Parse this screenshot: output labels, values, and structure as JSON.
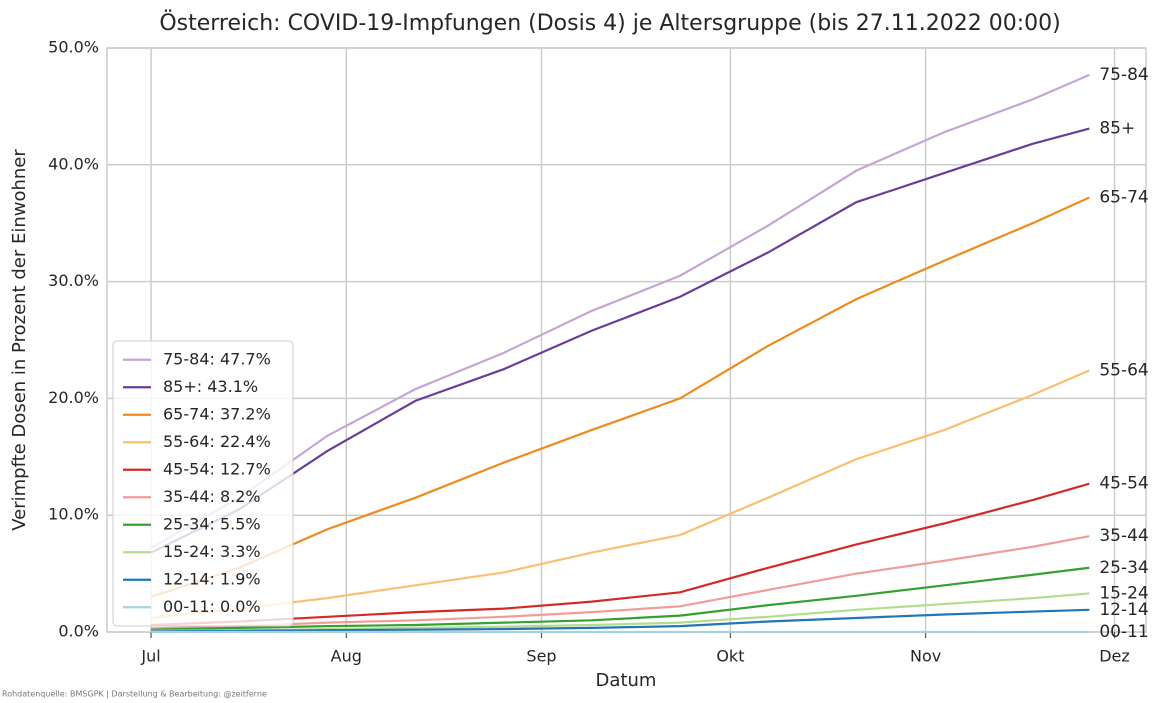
{
  "chart_data": {
    "type": "line",
    "title": "Österreich: COVID-19-Impfungen (Dosis 4) je Altersgruppe (bis 27.11.2022 00:00)",
    "xlabel": "Datum",
    "ylabel": "Verimpfte Dosen in Prozent der Einwohner",
    "source": "Rohdatenquelle: BMSGPK | Darstellung & Bearbeitung: @zeitferne",
    "x": [
      0,
      14,
      28,
      42,
      56,
      70,
      84,
      98,
      112,
      126,
      140,
      149
    ],
    "xlim": [
      -7,
      158
    ],
    "xticks": [
      {
        "value": 0,
        "label": "Jul"
      },
      {
        "value": 31,
        "label": "Aug"
      },
      {
        "value": 62,
        "label": "Sep"
      },
      {
        "value": 92,
        "label": "Okt"
      },
      {
        "value": 123,
        "label": "Nov"
      },
      {
        "value": 153,
        "label": "Dez"
      }
    ],
    "ylim": [
      0,
      50
    ],
    "yticks": [
      {
        "value": 0,
        "label": "0.0%"
      },
      {
        "value": 10,
        "label": "10.0%"
      },
      {
        "value": 20,
        "label": "20.0%"
      },
      {
        "value": 30,
        "label": "30.0%"
      },
      {
        "value": 40,
        "label": "40.0%"
      },
      {
        "value": 50,
        "label": "50.0%"
      }
    ],
    "grid": true,
    "legend_position": "lower left",
    "series": [
      {
        "name": "75-84",
        "legend": "75-84: 47.7%",
        "color": "#c5a5d4",
        "values": [
          7.2,
          11.5,
          16.8,
          20.8,
          23.9,
          27.5,
          30.5,
          34.8,
          39.5,
          42.8,
          45.6,
          47.7
        ]
      },
      {
        "name": "85+",
        "legend": "85+: 43.1%",
        "color": "#6a3d9a",
        "values": [
          6.8,
          10.5,
          15.5,
          19.8,
          22.5,
          25.8,
          28.7,
          32.5,
          36.8,
          39.3,
          41.8,
          43.1
        ]
      },
      {
        "name": "65-74",
        "legend": "65-74: 37.2%",
        "color": "#ef8a1c",
        "values": [
          3.0,
          5.5,
          8.8,
          11.5,
          14.5,
          17.3,
          20.0,
          24.5,
          28.5,
          31.8,
          35.0,
          37.2
        ]
      },
      {
        "name": "55-64",
        "legend": "55-64: 22.4%",
        "color": "#f9bf72",
        "values": [
          1.2,
          2.0,
          2.9,
          4.0,
          5.1,
          6.8,
          8.3,
          11.5,
          14.8,
          17.3,
          20.3,
          22.4
        ]
      },
      {
        "name": "45-54",
        "legend": "45-54: 12.7%",
        "color": "#d42a26",
        "values": [
          0.6,
          0.9,
          1.3,
          1.7,
          2.0,
          2.6,
          3.4,
          5.5,
          7.5,
          9.3,
          11.3,
          12.7
        ]
      },
      {
        "name": "35-44",
        "legend": "35-44: 8.2%",
        "color": "#f29c9a",
        "values": [
          0.3,
          0.5,
          0.8,
          1.0,
          1.3,
          1.7,
          2.2,
          3.6,
          5.0,
          6.1,
          7.3,
          8.2
        ]
      },
      {
        "name": "25-34",
        "legend": "25-34: 5.5%",
        "color": "#36a031",
        "values": [
          0.2,
          0.35,
          0.5,
          0.6,
          0.8,
          1.0,
          1.4,
          2.3,
          3.1,
          4.0,
          4.9,
          5.5
        ]
      },
      {
        "name": "15-24",
        "legend": "15-24: 3.3%",
        "color": "#b2dd8d",
        "values": [
          0.1,
          0.15,
          0.25,
          0.35,
          0.45,
          0.6,
          0.8,
          1.3,
          1.9,
          2.4,
          2.9,
          3.3
        ]
      },
      {
        "name": "12-14",
        "legend": "12-14: 1.9%",
        "color": "#2176b3",
        "values": [
          0.05,
          0.1,
          0.15,
          0.2,
          0.25,
          0.35,
          0.5,
          0.9,
          1.2,
          1.5,
          1.75,
          1.9
        ]
      },
      {
        "name": "00-11",
        "legend": "00-11: 0.0%",
        "color": "#a9cfe2",
        "values": [
          0,
          0,
          0,
          0,
          0,
          0,
          0,
          0,
          0,
          0,
          0,
          0
        ]
      }
    ]
  }
}
